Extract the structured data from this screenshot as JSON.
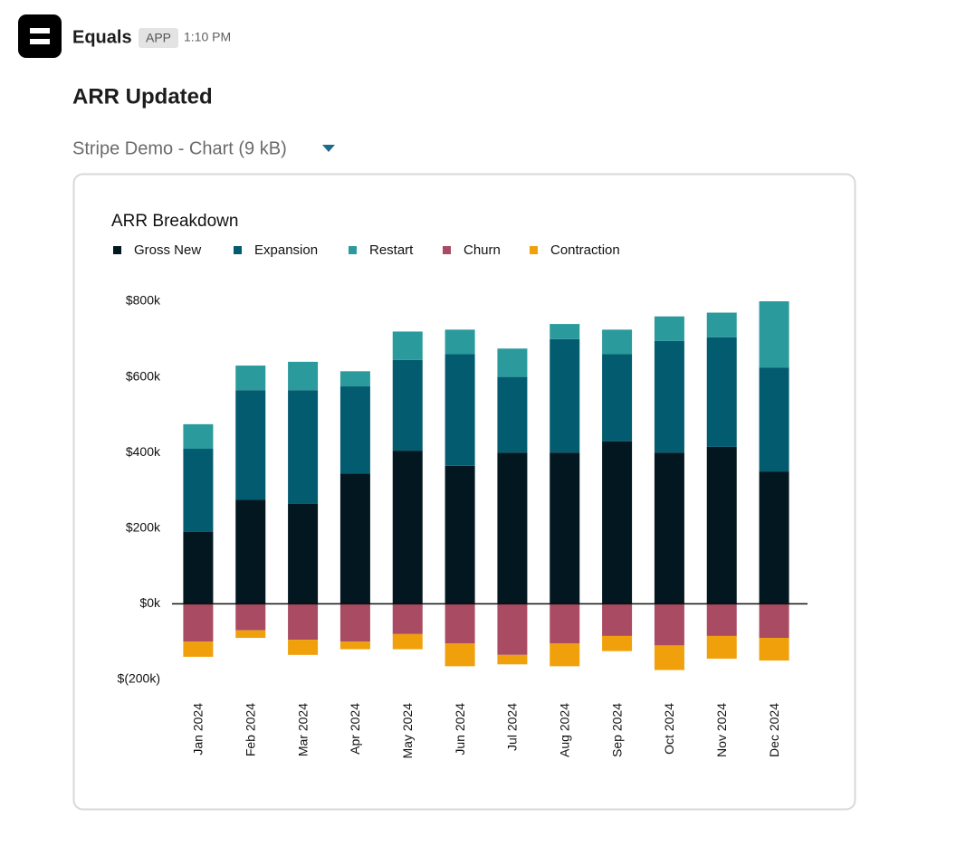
{
  "message": {
    "sender": "Equals",
    "badge": "APP",
    "time": "1:10 PM",
    "heading": "ARR Updated",
    "attachment": "Stripe Demo - Chart (9 kB)"
  },
  "chart_data": {
    "type": "stacked_bar",
    "title": "ARR Breakdown",
    "categories": [
      "Jan 2024",
      "Feb 2024",
      "Mar 2024",
      "Apr 2024",
      "May 2024",
      "Jun 2024",
      "Jul 2024",
      "Aug 2024",
      "Sep 2024",
      "Oct 2024",
      "Nov 2024",
      "Dec 2024"
    ],
    "series": [
      {
        "name": "Gross New",
        "color": "#02171f",
        "values": [
          190,
          275,
          265,
          345,
          405,
          365,
          400,
          400,
          430,
          400,
          415,
          350
        ]
      },
      {
        "name": "Expansion",
        "color": "#035b6f",
        "values": [
          220,
          290,
          300,
          230,
          240,
          295,
          200,
          300,
          230,
          295,
          290,
          275
        ]
      },
      {
        "name": "Restart",
        "color": "#2a9a9c",
        "values": [
          65,
          65,
          75,
          40,
          75,
          65,
          75,
          40,
          65,
          65,
          65,
          175
        ]
      },
      {
        "name": "Churn",
        "color": "#a94b63",
        "values": [
          -100,
          -70,
          -95,
          -100,
          -80,
          -105,
          -135,
          -105,
          -85,
          -110,
          -85,
          -90
        ]
      },
      {
        "name": "Contraction",
        "color": "#f0a00a",
        "values": [
          -40,
          -20,
          -40,
          -20,
          -40,
          -60,
          -25,
          -60,
          -40,
          -65,
          -60,
          -60
        ]
      }
    ],
    "ylim": [
      -200,
      800
    ],
    "yticks": [
      {
        "value": -200,
        "label": "$(200k)"
      },
      {
        "value": 0,
        "label": "$0k"
      },
      {
        "value": 200,
        "label": "$200k"
      },
      {
        "value": 400,
        "label": "$400k"
      },
      {
        "value": 600,
        "label": "$600k"
      },
      {
        "value": 800,
        "label": "$800k"
      }
    ],
    "grid": false,
    "legend": "top-left"
  }
}
